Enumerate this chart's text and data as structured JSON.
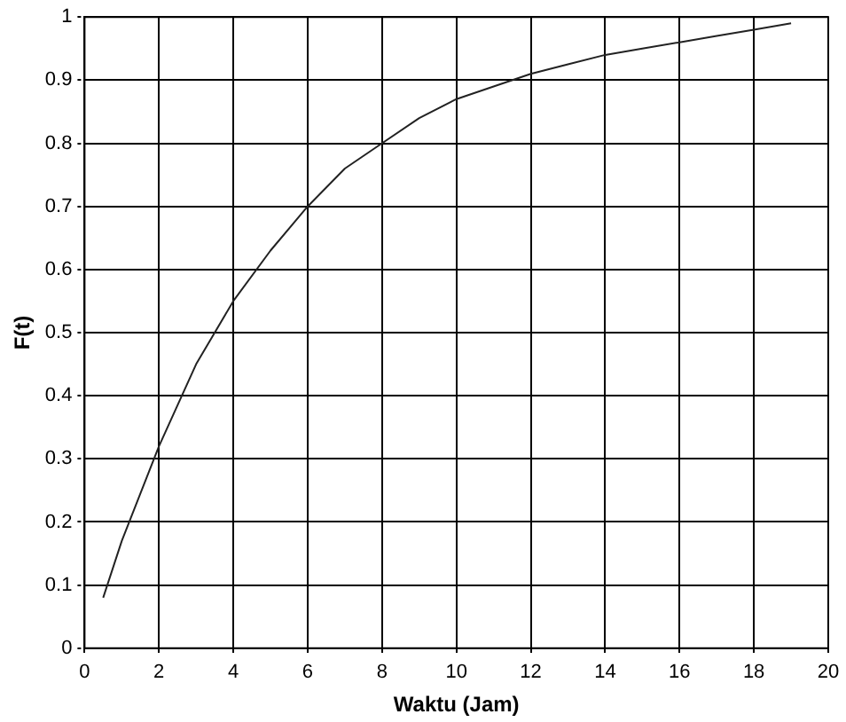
{
  "chart_data": {
    "type": "line",
    "xlabel": "Waktu (Jam)",
    "ylabel": "F(t)",
    "x": [
      0.5,
      1,
      2,
      3,
      4,
      5,
      6,
      7,
      8,
      9,
      10,
      11,
      12,
      13,
      14,
      15,
      16,
      17,
      18,
      19
    ],
    "series": [
      {
        "color": "#222222",
        "values": [
          0.08,
          0.17,
          0.32,
          0.45,
          0.55,
          0.63,
          0.7,
          0.76,
          0.8,
          0.84,
          0.87,
          0.89,
          0.91,
          0.925,
          0.94,
          0.95,
          0.96,
          0.97,
          0.98,
          0.99
        ]
      }
    ],
    "xlim": [
      0,
      20
    ],
    "xticks": [
      0,
      2,
      4,
      6,
      8,
      10,
      12,
      14,
      16,
      18,
      20
    ],
    "ylim": [
      0,
      1
    ],
    "yticks": [
      0,
      0.1,
      0.2,
      0.3,
      0.4,
      0.5,
      0.6,
      0.7,
      0.8,
      0.9,
      1
    ],
    "grid": true,
    "legend": false,
    "marker": "none",
    "line_style": "solid"
  }
}
